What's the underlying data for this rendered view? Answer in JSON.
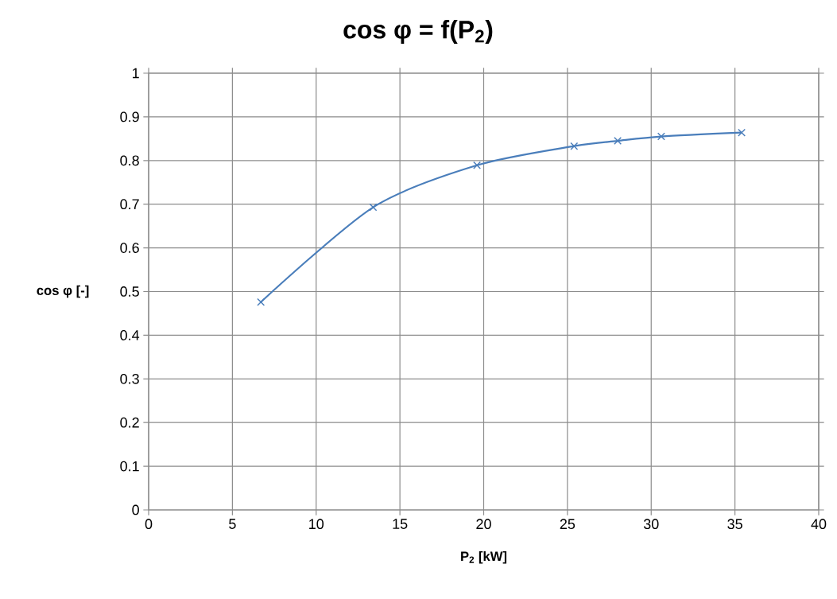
{
  "chart_data": {
    "type": "line",
    "title": "cos φ = f(P$_{2}$)",
    "xlabel": "P$_{2}$ [kW]",
    "ylabel": "cos φ [-]",
    "x": [
      6.7,
      13.4,
      19.6,
      25.4,
      28.0,
      30.6,
      35.4
    ],
    "series": [
      {
        "color": "#4a7ebb",
        "values": [
          0.476,
          0.693,
          0.789,
          0.833,
          0.845,
          0.855,
          0.864
        ]
      }
    ],
    "xlim": [
      0,
      40
    ],
    "xticks": [
      0,
      5,
      10,
      15,
      20,
      25,
      30,
      35,
      40
    ],
    "ylim": [
      0,
      1
    ],
    "yticks": [
      0,
      0.1,
      0.2,
      0.3,
      0.4,
      0.5,
      0.6,
      0.7,
      0.8,
      0.9,
      1
    ],
    "grid": true,
    "marker": "cross",
    "line_style": "solid"
  }
}
